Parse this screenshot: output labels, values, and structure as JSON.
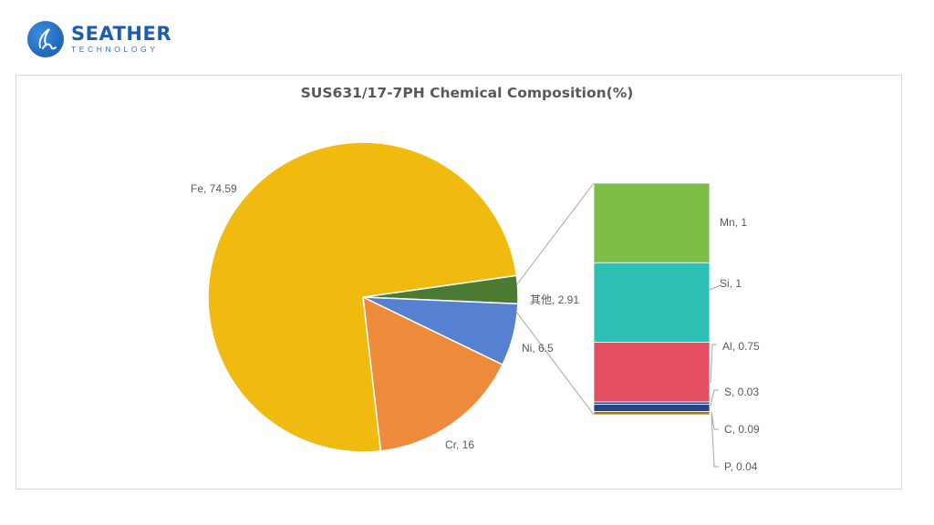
{
  "brand": {
    "name": "SEATHER",
    "subtitle": "TECHNOLOGY"
  },
  "chart_data": {
    "type": "pie",
    "subtype": "bar-of-pie",
    "title": "SUS631/17-7PH Chemical Composition(%)",
    "slices": [
      {
        "label": "Fe",
        "value": 74.59,
        "color": "#F0BB0E",
        "display": "Fe, 74.59"
      },
      {
        "label": "Cr",
        "value": 16,
        "color": "#EE8A3C",
        "display": "Cr, 16"
      },
      {
        "label": "Ni",
        "value": 6.5,
        "color": "#5680D2",
        "display": "Ni, 6.5"
      },
      {
        "label": "其他",
        "value": 2.91,
        "color": "#4D7A33",
        "display": "其他, 2.91"
      }
    ],
    "breakdown_of": "其他",
    "breakdown": [
      {
        "label": "Mn",
        "value": 1,
        "color": "#7BBD45",
        "display": "Mn, 1"
      },
      {
        "label": "Si",
        "value": 1,
        "color": "#2EC0B4",
        "display": "Si, 1"
      },
      {
        "label": "Al",
        "value": 0.75,
        "color": "#E34E60",
        "display": "Al, 0.75"
      },
      {
        "label": "S",
        "value": 0.03,
        "color": "#2A4A8C",
        "display": "S, 0.03"
      },
      {
        "label": "C",
        "value": 0.09,
        "color": "#264384",
        "display": "C, 0.09"
      },
      {
        "label": "P",
        "value": 0.04,
        "color": "#A07A1A",
        "display": "P, 0.04"
      }
    ],
    "legend": "none"
  }
}
